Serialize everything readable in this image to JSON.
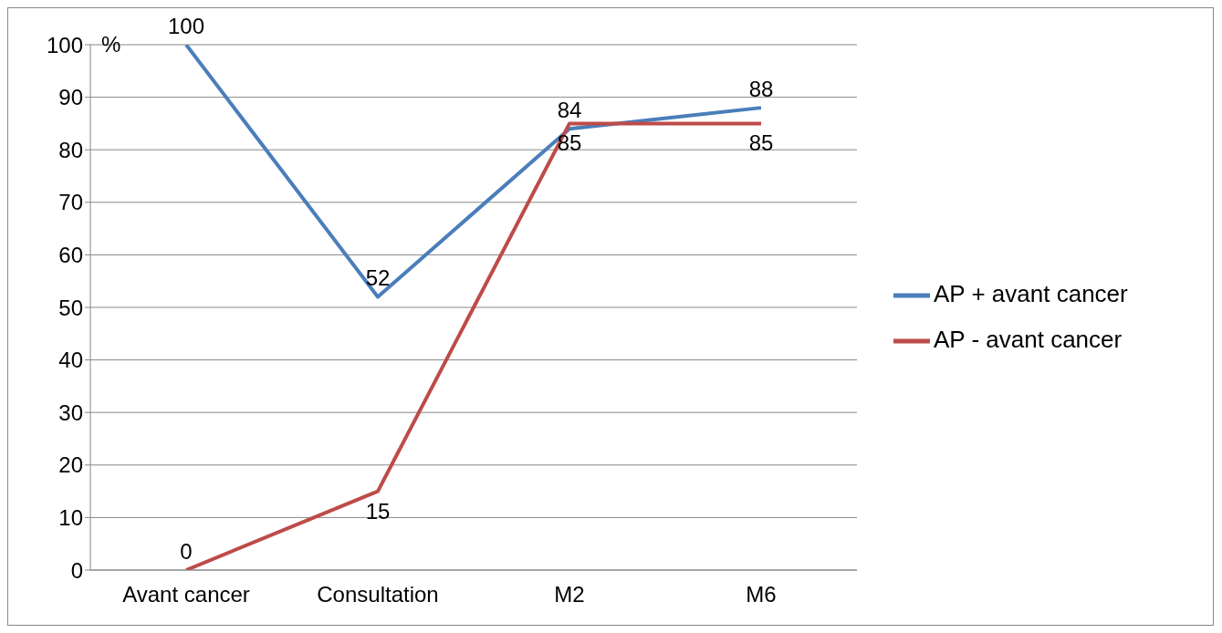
{
  "chart_data": {
    "type": "line",
    "ylabel": "%",
    "categories": [
      "Avant cancer",
      "Consultation",
      "M2",
      "M6"
    ],
    "series": [
      {
        "name": "AP + avant cancer",
        "color": "#4a7ebb",
        "values": [
          100,
          52,
          84,
          88
        ]
      },
      {
        "name": "AP - avant cancer",
        "color": "#be4b48",
        "values": [
          0,
          15,
          85,
          85
        ]
      }
    ],
    "ylim": [
      0,
      100
    ],
    "yticks": [
      0,
      10,
      20,
      30,
      40,
      50,
      60,
      70,
      80,
      90,
      100
    ],
    "grid": "y",
    "legend": "right",
    "marker": "none",
    "line_style": "solid",
    "data_labels": true
  }
}
